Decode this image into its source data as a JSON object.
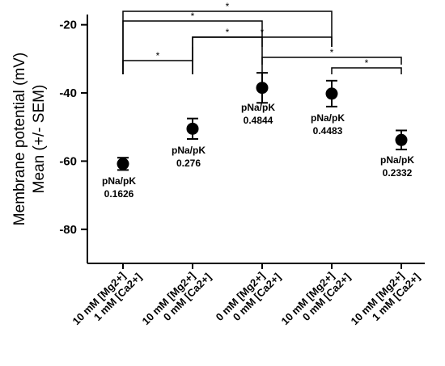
{
  "chart_data": {
    "type": "scatter",
    "ylabel": [
      "Membrane potential (mV)",
      "Mean (+/- SEM)"
    ],
    "xlabel": "",
    "title": "",
    "ylim": [
      -90,
      -17
    ],
    "yticks": [
      -20,
      -40,
      -60,
      -80
    ],
    "grid": false,
    "legend": "none",
    "categories": [
      [
        "10 mM [Mg2+]",
        "1 mM [Ca2+]"
      ],
      [
        "10 mM [Mg2+]",
        "0 mM [Ca2+]"
      ],
      [
        "0 mM [Mg2+]",
        "0 mM [Ca2+]"
      ],
      [
        "10 mM [Mg2+]",
        "0 mM [Ca2+]"
      ],
      [
        "10 mM [Mg2+]",
        "1 mM [Ca2+]"
      ]
    ],
    "series": [
      {
        "values": [
          -60.8,
          -50.5,
          -38.5,
          -40.2,
          -53.8
        ],
        "sem": [
          1.8,
          3.0,
          4.4,
          3.8,
          2.8
        ]
      }
    ],
    "annotations": [
      {
        "label": "pNa/pK",
        "value": "0.1626"
      },
      {
        "label": "pNa/pK",
        "value": "0.276"
      },
      {
        "label": "pNa/pK",
        "value": "0.4844"
      },
      {
        "label": "pNa/pK",
        "value": "0.4483"
      },
      {
        "label": "pNa/pK",
        "value": "0.2332"
      }
    ],
    "significance": [
      {
        "from": 1,
        "to": 4,
        "label": "*"
      },
      {
        "from": 1,
        "to": 3,
        "label": "*"
      },
      {
        "from": 2,
        "to": 4,
        "label": "*"
      },
      {
        "from": 1,
        "to": 2,
        "label": "*"
      },
      {
        "from": 2,
        "to": 3,
        "label": "*"
      },
      {
        "from": 3,
        "to": 5,
        "label": "*"
      },
      {
        "from": 4,
        "to": 5,
        "label": "*"
      }
    ]
  }
}
